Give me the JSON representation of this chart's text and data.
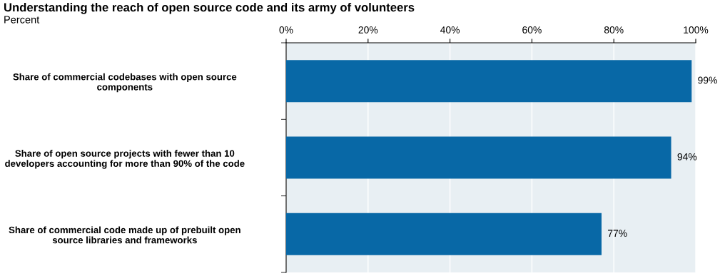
{
  "chart_data": {
    "type": "bar",
    "orientation": "horizontal",
    "title": "Understanding the reach of open source code and its army of volunteers",
    "subtitle": "Percent",
    "categories": [
      "Share of commercial codebases with open source components",
      "Share of open source projects with fewer than 10 developers accounting for more than 90% of the code",
      "Share of commercial code made up of prebuilt open source libraries and frameworks"
    ],
    "values": [
      99,
      94,
      77
    ],
    "value_labels": [
      "99%",
      "94%",
      "77%"
    ],
    "color": "#0868a6",
    "xlim": [
      0,
      100
    ],
    "xticks": [
      {
        "value": 0,
        "label": "0%"
      },
      {
        "value": 20,
        "label": "20%"
      },
      {
        "value": 40,
        "label": "40%"
      },
      {
        "value": 60,
        "label": "60%"
      },
      {
        "value": 80,
        "label": "80%"
      },
      {
        "value": 100,
        "label": "100%"
      }
    ],
    "grid": "x"
  }
}
